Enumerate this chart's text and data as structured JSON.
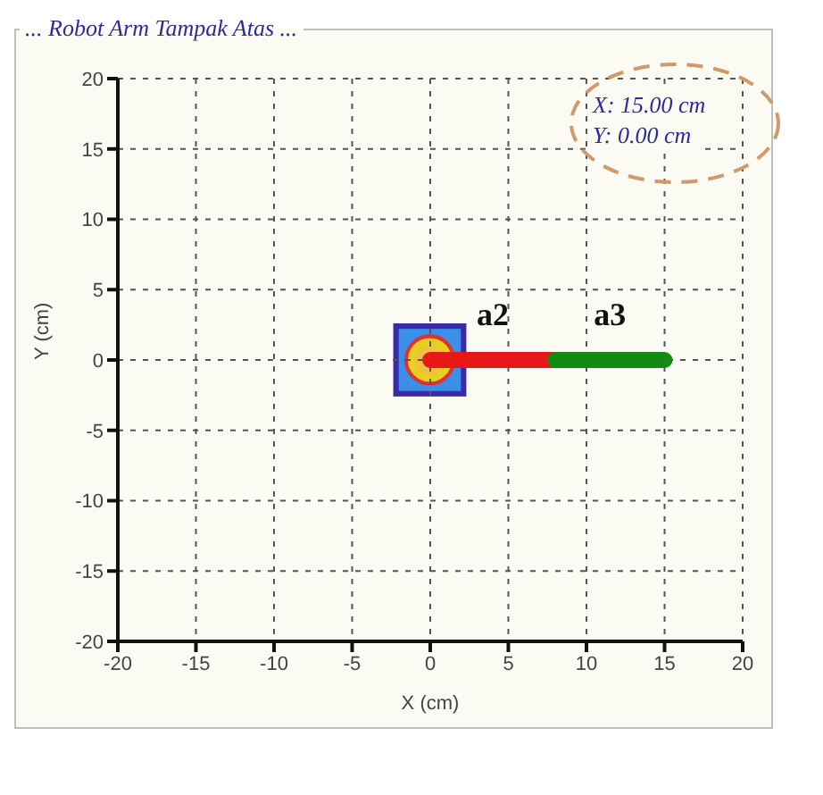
{
  "chart_data": {
    "type": "line",
    "title": "... Robot Arm Tampak Atas ...",
    "xlabel": "X (cm)",
    "ylabel": "Y (cm)",
    "series": [
      {
        "name": "a2",
        "color": "#e81818",
        "x": [
          0,
          8
        ],
        "values": [
          0,
          0
        ]
      },
      {
        "name": "a3",
        "color": "#138a13",
        "x": [
          8,
          15
        ],
        "values": [
          0,
          0
        ]
      }
    ],
    "xlim": [
      -20,
      20
    ],
    "xticks": [
      -20,
      -15,
      -10,
      -5,
      0,
      5,
      10,
      15,
      20
    ],
    "ylim": [
      -20,
      20
    ],
    "yticks": [
      -20,
      -15,
      -10,
      -5,
      0,
      5,
      10,
      15,
      20
    ],
    "grid": true,
    "legend": false,
    "line_style": "solid",
    "annotations": [
      "X: 15.00 cm",
      "Y: 0.00 cm"
    ]
  }
}
